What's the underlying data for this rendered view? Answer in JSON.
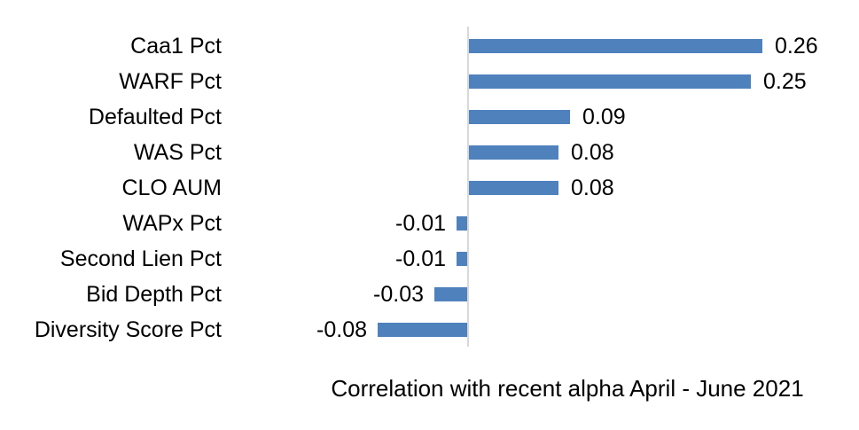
{
  "chart_data": {
    "type": "bar",
    "orientation": "horizontal",
    "title": "Correlation with recent alpha April - June 2021",
    "title_position": "bottom",
    "categories": [
      "Caa1 Pct",
      "WARF Pct",
      "Defaulted Pct",
      "WAS Pct",
      "CLO AUM",
      "WAPx Pct",
      "Second Lien Pct",
      "Bid Depth Pct",
      "Diversity Score Pct"
    ],
    "values": [
      0.26,
      0.25,
      0.09,
      0.08,
      0.08,
      -0.01,
      -0.01,
      -0.03,
      -0.08
    ],
    "value_labels": [
      "0.26",
      "0.25",
      "0.09",
      "0.08",
      "0.08",
      "-0.01",
      "-0.01",
      "-0.03",
      "-0.08"
    ],
    "data_labels": true,
    "grid": false,
    "legend": false,
    "xlabel": "",
    "ylabel": "",
    "bar_color": "#4f81bd",
    "axis_color": "#d9d9d9",
    "text_color": "#000000",
    "background_color": "#ffffff"
  }
}
